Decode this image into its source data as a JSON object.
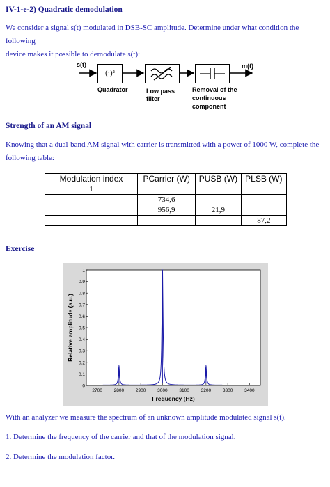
{
  "section1": {
    "title": "IV-1-e-2) Quadratic demodulation",
    "para_line1": "We consider a signal s(t) modulated in DSB-SC amplitude. Determine under what condition the following",
    "para_line2": "device makes it possible to demodulate s(t):"
  },
  "diagram": {
    "input_label": "s(t)",
    "output_label": "m(t)",
    "block1_symbol": "(·)²",
    "block1_label": "Quadrator",
    "block2_label_line1": "Low pass",
    "block2_label_line2": "filter",
    "block3_label_line1": "Removal of the",
    "block3_label_line2": "continuous",
    "block3_label_line3": "component"
  },
  "section2": {
    "title": "Strength of an AM signal",
    "para_line1": "Knowing that a dual-band AM signal with carrier is transmitted with a power of 1000 W, complete the",
    "para_line2": "following table:"
  },
  "table": {
    "headers": [
      "Modulation index",
      "PCarrier (W)",
      "PUSB (W)",
      "PLSB (W)"
    ],
    "rows": [
      [
        "1",
        "",
        "",
        ""
      ],
      [
        "",
        "734,6",
        "",
        ""
      ],
      [
        "",
        "956,9",
        "21,9",
        ""
      ],
      [
        "",
        "",
        "",
        "87,2"
      ]
    ]
  },
  "section3": {
    "title": "Exercise",
    "line1": "With an analyzer we measure the spectrum of an unknown amplitude modulated signal s(t).",
    "q1": "1. Determine the frequency of the carrier and that of the modulation signal.",
    "q2": "2. Determine the modulation factor."
  },
  "chart_data": {
    "type": "line",
    "title": "",
    "xlabel": "Frequency (Hz)",
    "ylabel": "Relative amplitude (a.u.)",
    "xlim": [
      2650,
      3450
    ],
    "ylim": [
      0,
      1
    ],
    "xticks": [
      "2700",
      "2800",
      "2900",
      "3000",
      "3100",
      "3200",
      "3300",
      "3400"
    ],
    "yticks": [
      "0",
      "0.1",
      "0.2",
      "0.3",
      "0.4",
      "0.5",
      "0.6",
      "0.7",
      "0.8",
      "0.9",
      "1"
    ],
    "peaks": [
      {
        "x": 2800,
        "y": 0.17
      },
      {
        "x": 3000,
        "y": 1.0
      },
      {
        "x": 3200,
        "y": 0.17
      }
    ],
    "line_color": "#1a1aa8",
    "grid": false
  }
}
